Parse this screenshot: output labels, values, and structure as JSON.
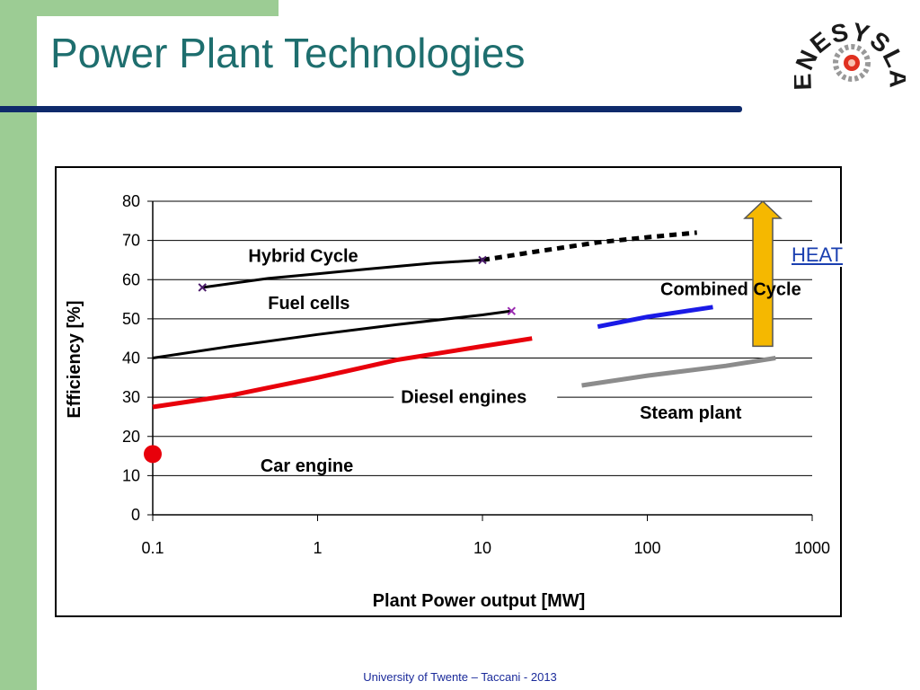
{
  "slide": {
    "title": "Power Plant Technologies",
    "footer": "University of Twente – Taccani - 2013",
    "heat_link": "HEAT",
    "logo_text": "ENESYSLAB",
    "colors": {
      "green": "#9ccc94",
      "title": "#1e6e6e",
      "rule": "#0f2a6b"
    }
  },
  "chart_data": {
    "type": "line",
    "xlabel": "Plant Power output [MW]",
    "ylabel": "Efficiency [%]",
    "xscale": "log",
    "xlim": [
      0.1,
      1000
    ],
    "ylim": [
      0,
      80
    ],
    "xticks": [
      0.1,
      1,
      10,
      100,
      1000
    ],
    "xtick_labels": [
      "0.1",
      "1",
      "10",
      "100",
      "1000"
    ],
    "yticks": [
      0,
      10,
      20,
      30,
      40,
      50,
      60,
      70,
      80
    ],
    "ytick_labels": [
      "0",
      "10",
      "20",
      "30",
      "40",
      "50",
      "60",
      "70",
      "80"
    ],
    "grid": "horizontal",
    "series": [
      {
        "name": "Hybrid Cycle",
        "color": "#000000",
        "style": "solid",
        "x": [
          0.2,
          0.5,
          1,
          2,
          5,
          10
        ],
        "y": [
          58,
          60.3,
          61.5,
          62.7,
          64.2,
          65
        ]
      },
      {
        "name": "Hybrid Cycle",
        "color": "#000000",
        "style": "dashed",
        "x": [
          10,
          20,
          50,
          100,
          200
        ],
        "y": [
          65,
          67,
          69.5,
          70.8,
          72
        ]
      },
      {
        "name": "Fuel cells",
        "color": "#000000",
        "style": "solid",
        "x": [
          0.1,
          0.3,
          1,
          3,
          10,
          15
        ],
        "y": [
          40,
          43,
          46,
          48.5,
          51,
          52
        ]
      },
      {
        "name": "Diesel engines",
        "color": "#e8000b",
        "style": "solid",
        "x": [
          0.1,
          0.3,
          1,
          3,
          10,
          20
        ],
        "y": [
          27.5,
          30.5,
          35,
          39.5,
          43,
          45
        ]
      },
      {
        "name": "Combined Cycle",
        "color": "#1a1ae6",
        "style": "solid",
        "x": [
          50,
          100,
          250
        ],
        "y": [
          48,
          50.5,
          53
        ]
      },
      {
        "name": "Steam plant",
        "color": "#8c8c8c",
        "style": "solid",
        "x": [
          40,
          100,
          300,
          600
        ],
        "y": [
          33,
          35.5,
          38,
          40
        ]
      },
      {
        "name": "Car engine",
        "color": "#e8000b",
        "style": "point",
        "x": [
          0.1
        ],
        "y": [
          15.5
        ]
      }
    ],
    "markers": [
      {
        "x": 0.2,
        "y": 58,
        "color": "#4a1a6a"
      },
      {
        "x": 10,
        "y": 65,
        "color": "#4a1a6a"
      },
      {
        "x": 15,
        "y": 52,
        "color": "#9a2ab0"
      }
    ],
    "annotations": [
      {
        "text": "Hybrid Cycle",
        "x": 0.38,
        "y": 64.5
      },
      {
        "text": "Fuel cells",
        "x": 0.5,
        "y": 52.5
      },
      {
        "text": "Diesel engines",
        "x": 3.2,
        "y": 28.5
      },
      {
        "text": "Combined Cycle",
        "x": 120,
        "y": 56
      },
      {
        "text": "Steam plant",
        "x": 90,
        "y": 24.5
      },
      {
        "text": "Car engine",
        "x": 0.45,
        "y": 11
      }
    ],
    "arrow": {
      "x": 500,
      "y_from": 43,
      "y_to": 80,
      "color": "#f5b800"
    }
  }
}
